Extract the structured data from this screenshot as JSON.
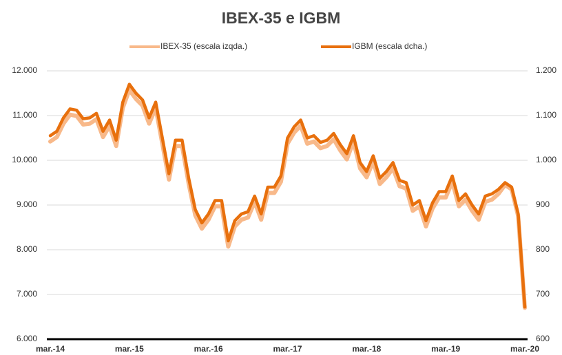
{
  "chart_data": {
    "type": "line",
    "title": "IBEX-35 e IGBM",
    "categories": [
      "mar.-14",
      null,
      null,
      null,
      null,
      null,
      null,
      null,
      null,
      null,
      null,
      null,
      "mar.-15",
      null,
      null,
      null,
      null,
      null,
      null,
      null,
      null,
      null,
      null,
      null,
      "mar.-16",
      null,
      null,
      null,
      null,
      null,
      null,
      null,
      null,
      null,
      null,
      null,
      "mar.-17",
      null,
      null,
      null,
      null,
      null,
      null,
      null,
      null,
      null,
      null,
      null,
      "mar.-18",
      null,
      null,
      null,
      null,
      null,
      null,
      null,
      null,
      null,
      null,
      null,
      "mar.-19",
      null,
      null,
      null,
      null,
      null,
      null,
      null,
      null,
      null,
      null,
      null,
      "mar.-20"
    ],
    "series": [
      {
        "name": "IBEX-35 (escala izqda.)",
        "color": "#f8b98a",
        "values": [
          10420,
          10520,
          10820,
          11020,
          10990,
          10800,
          10820,
          10920,
          10520,
          10770,
          10320,
          11170,
          11570,
          11370,
          11220,
          10820,
          11170,
          10370,
          9570,
          10320,
          10320,
          9470,
          8770,
          8470,
          8670,
          8970,
          8970,
          8070,
          8520,
          8670,
          8720,
          9070,
          8670,
          9270,
          9270,
          9520,
          10370,
          10620,
          10770,
          10370,
          10420,
          10270,
          10320,
          10470,
          10220,
          10020,
          10420,
          9820,
          9620,
          9970,
          9470,
          9620,
          9820,
          9420,
          9370,
          8870,
          8970,
          8520,
          8920,
          9170,
          9170,
          9520,
          8970,
          9120,
          8870,
          8670,
          9070,
          9120,
          9250,
          9450,
          9350,
          8750,
          6700
        ]
      },
      {
        "name": "IGBM (escala dcha.)",
        "color": "#e8700d",
        "axis": "y2",
        "values": [
          1055,
          1065,
          1095,
          1115,
          1112,
          1093,
          1095,
          1105,
          1065,
          1090,
          1045,
          1130,
          1170,
          1150,
          1135,
          1095,
          1130,
          1050,
          970,
          1045,
          1045,
          960,
          890,
          860,
          880,
          910,
          910,
          820,
          865,
          880,
          885,
          920,
          880,
          940,
          940,
          965,
          1050,
          1075,
          1090,
          1050,
          1055,
          1040,
          1045,
          1060,
          1035,
          1015,
          1055,
          995,
          975,
          1010,
          960,
          975,
          995,
          955,
          950,
          900,
          910,
          865,
          905,
          930,
          930,
          965,
          910,
          925,
          900,
          880,
          920,
          925,
          935,
          950,
          940,
          880,
          672
        ]
      }
    ],
    "ylim": [
      6000,
      12000
    ],
    "yticks": [
      {
        "value": 6000,
        "label": "6.000"
      },
      {
        "value": 7000,
        "label": "7.000"
      },
      {
        "value": 8000,
        "label": "8.000"
      },
      {
        "value": 9000,
        "label": "9.000"
      },
      {
        "value": 10000,
        "label": "10.000"
      },
      {
        "value": 11000,
        "label": "11.000"
      },
      {
        "value": 12000,
        "label": "12.000"
      }
    ],
    "y2lim": [
      600,
      1200
    ],
    "y2ticks": [
      600,
      700,
      800,
      900,
      {
        "value": 1000,
        "label": "1.000"
      },
      {
        "value": 1100,
        "label": "1.100"
      },
      {
        "value": 1200,
        "label": "1.200"
      }
    ],
    "grid": true,
    "legend": "top"
  }
}
